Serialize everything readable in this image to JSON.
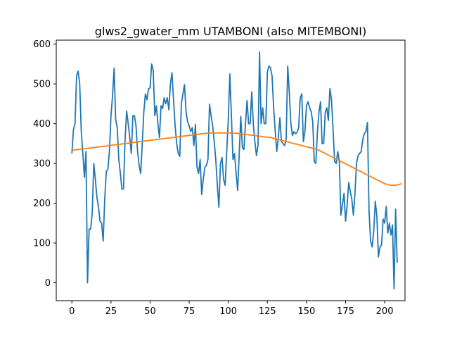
{
  "chart_data": {
    "type": "line",
    "title": "glws2_gwater_mm UTAMBONI (also MITEMBONI)",
    "xlabel": "",
    "ylabel": "",
    "xlim": [
      -10,
      213
    ],
    "ylim": [
      -45,
      610
    ],
    "grid": false,
    "x_ticks": [
      0,
      25,
      50,
      75,
      100,
      125,
      150,
      175,
      200
    ],
    "y_ticks": [
      0,
      100,
      200,
      300,
      400,
      500,
      600
    ],
    "series": [
      {
        "color": "#1f77b4",
        "x_start": 0,
        "x_step": 1,
        "values": [
          325,
          385,
          400,
          520,
          532,
          500,
          380,
          325,
          265,
          330,
          0,
          135,
          135,
          175,
          300,
          260,
          215,
          190,
          155,
          150,
          105,
          210,
          280,
          285,
          330,
          420,
          470,
          540,
          410,
          390,
          310,
          275,
          235,
          236,
          360,
          432,
          400,
          365,
          325,
          420,
          420,
          395,
          330,
          295,
          275,
          350,
          430,
          475,
          460,
          488,
          490,
          550,
          535,
          420,
          445,
          400,
          365,
          445,
          438,
          465,
          450,
          465,
          435,
          500,
          528,
          460,
          395,
          350,
          325,
          318,
          450,
          475,
          498,
          430,
          405,
          395,
          380,
          390,
          345,
          398,
          290,
          275,
          310,
          222,
          260,
          290,
          295,
          310,
          449,
          420,
          395,
          355,
          310,
          245,
          190,
          300,
          315,
          260,
          245,
          330,
          410,
          525,
          420,
          310,
          325,
          275,
          232,
          325,
          418,
          340,
          335,
          400,
          458,
          400,
          400,
          480,
          400,
          355,
          320,
          345,
          580,
          400,
          440,
          400,
          400,
          530,
          545,
          540,
          520,
          440,
          382,
          330,
          365,
          415,
          355,
          350,
          345,
          360,
          545,
          480,
          402,
          370,
          380,
          375,
          378,
          390,
          465,
          475,
          355,
          380,
          445,
          455,
          440,
          430,
          405,
          305,
          300,
          380,
          430,
          455,
          350,
          350,
          428,
          440,
          408,
          488,
          460,
          385,
          305,
          300,
          330,
          305,
          170,
          195,
          225,
          155,
          195,
          252,
          230,
          210,
          170,
          225,
          300,
          320,
          325,
          330,
          360,
          375,
          380,
          403,
          180,
          105,
          90,
          130,
          205,
          168,
          65,
          90,
          95,
          160,
          150,
          192,
          125,
          150,
          120,
          145,
          -15,
          185,
          50
        ]
      },
      {
        "color": "#ff7f0e",
        "x_start": 0,
        "x_step": 1,
        "values": [
          333,
          333.5,
          334,
          334.5,
          335,
          335.5,
          336,
          336.5,
          337,
          337.5,
          338,
          338.5,
          339,
          339.5,
          340,
          340.5,
          341,
          341.5,
          342,
          342.5,
          343,
          343.5,
          344,
          344.5,
          345,
          345.5,
          346,
          346.5,
          347,
          347.5,
          348,
          348.5,
          349,
          349.5,
          350,
          350.5,
          351,
          351.5,
          352,
          352.5,
          353,
          353.5,
          354,
          354.5,
          355,
          355.5,
          356,
          356.5,
          357,
          357.5,
          358,
          358.5,
          359,
          359.5,
          360,
          360.5,
          361,
          361.5,
          362,
          362.5,
          363,
          363.5,
          364,
          364.5,
          365,
          365.5,
          366,
          366.5,
          367,
          367.5,
          368,
          368.5,
          369,
          369.5,
          370,
          370.5,
          371,
          371.5,
          372,
          372.5,
          373,
          373.5,
          374,
          374.5,
          375,
          375.5,
          376,
          376.5,
          376.5,
          376.5,
          376.5,
          376.5,
          376.5,
          376.5,
          376.5,
          376.5,
          376.5,
          376.5,
          376.5,
          376.5,
          376.5,
          376.5,
          376.5,
          376.5,
          376,
          376,
          375.5,
          375,
          374.5,
          374,
          373.5,
          373,
          372.5,
          372,
          371.5,
          371,
          370.5,
          370,
          369.5,
          369,
          368.5,
          368,
          367.5,
          367,
          366.5,
          366,
          365.5,
          365,
          364,
          363,
          362,
          361,
          360,
          359,
          358,
          357,
          356,
          355,
          354,
          353,
          352,
          351,
          350,
          349,
          348,
          347,
          346,
          345,
          344,
          343,
          342,
          341,
          340,
          339,
          338,
          337,
          336,
          335,
          333,
          331,
          329,
          327,
          325,
          323,
          321,
          319,
          317,
          315,
          313,
          311,
          309,
          307,
          305,
          303,
          301,
          299,
          297,
          295,
          293,
          291,
          289,
          287,
          285,
          283,
          281,
          279,
          277,
          275,
          273,
          271,
          269,
          267,
          265,
          263,
          261,
          259,
          257,
          255,
          253,
          251,
          249,
          248,
          247,
          246,
          245,
          245,
          245,
          245,
          246,
          247,
          248,
          249
        ]
      }
    ]
  }
}
